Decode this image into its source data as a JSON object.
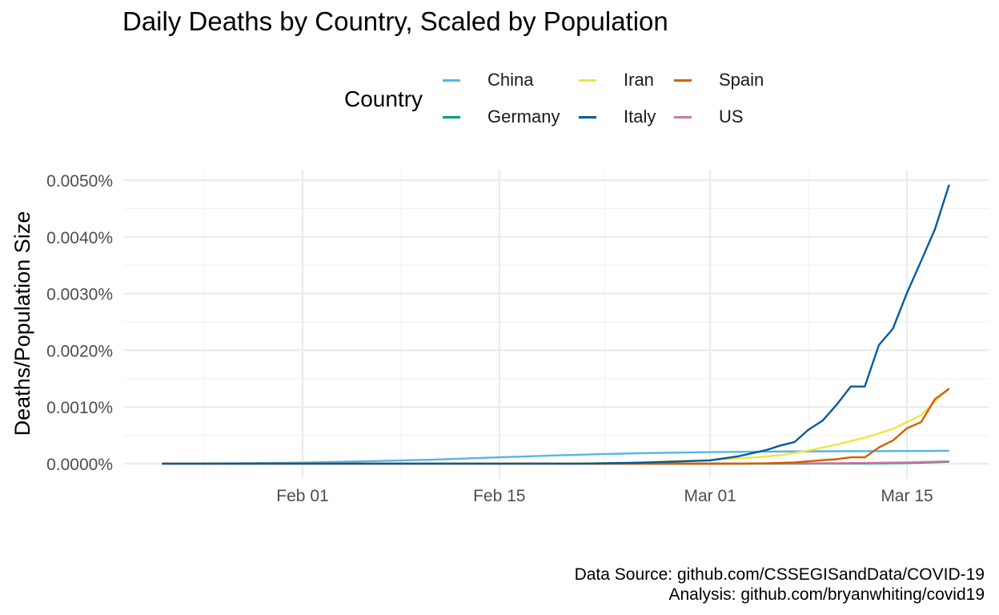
{
  "title": "Daily Deaths by Country, Scaled by Population",
  "legend": {
    "title": "Country",
    "items": [
      {
        "label": "China",
        "color": "#56B4E9"
      },
      {
        "label": "Germany",
        "color": "#009E73"
      },
      {
        "label": "Iran",
        "color": "#F0E442"
      },
      {
        "label": "Italy",
        "color": "#0A5A9C"
      },
      {
        "label": "Spain",
        "color": "#D55E00"
      },
      {
        "label": "US",
        "color": "#CC79A7"
      }
    ]
  },
  "caption": {
    "line1": "Data Source: github.com/CSSEGISandData/COVID-19",
    "line2": "Analysis: github.com/bryanwhiting/covid19"
  },
  "chart_data": {
    "type": "line",
    "title": "Daily Deaths by Country, Scaled by Population",
    "xlabel": "",
    "ylabel": "Deaths/Population Size",
    "x_tick_labels": [
      "Feb 01",
      "Feb 15",
      "Mar 01",
      "Mar 15"
    ],
    "x_ticks": [
      "2020-02-01",
      "2020-02-15",
      "2020-03-01",
      "2020-03-15"
    ],
    "y_tick_labels": [
      "0.0000%",
      "0.0010%",
      "0.0020%",
      "0.0030%",
      "0.0040%",
      "0.0050%"
    ],
    "y_ticks": [
      0,
      0.001,
      0.002,
      0.003,
      0.004,
      0.005
    ],
    "ylim": [
      0,
      0.005
    ],
    "xlim": [
      "2020-01-22",
      "2020-03-18"
    ],
    "grid": true,
    "legend_position": "top",
    "series": [
      {
        "name": "China",
        "color": "#56B4E9",
        "x": [
          "2020-01-22",
          "2020-01-27",
          "2020-02-01",
          "2020-02-05",
          "2020-02-10",
          "2020-02-15",
          "2020-02-20",
          "2020-02-25",
          "2020-03-01",
          "2020-03-05",
          "2020-03-10",
          "2020-03-15",
          "2020-03-18"
        ],
        "y": [
          1.2e-06,
          5.8e-06,
          1.9e-05,
          3.9e-05,
          6.8e-05,
          0.000112,
          0.000153,
          0.000185,
          0.000203,
          0.000213,
          0.000219,
          0.000223,
          0.000226
        ]
      },
      {
        "name": "Germany",
        "color": "#009E73",
        "x": [
          "2020-01-22",
          "2020-03-08",
          "2020-03-12",
          "2020-03-15",
          "2020-03-18"
        ],
        "y": [
          0,
          0,
          2.4e-06,
          9.2e-06,
          3.3e-05
        ]
      },
      {
        "name": "Iran",
        "color": "#F0E442",
        "x": [
          "2020-01-22",
          "2020-02-19",
          "2020-02-24",
          "2020-03-01",
          "2020-03-04",
          "2020-03-06",
          "2020-03-08",
          "2020-03-10",
          "2020-03-12",
          "2020-03-14",
          "2020-03-16",
          "2020-03-18"
        ],
        "y": [
          0,
          0,
          1.4e-05,
          6.5e-05,
          0.000109,
          0.000148,
          0.000231,
          0.000336,
          0.000458,
          0.000613,
          0.000851,
          0.00134
        ]
      },
      {
        "name": "Italy",
        "color": "#0A5A9C",
        "x": [
          "2020-01-22",
          "2020-02-21",
          "2020-02-25",
          "2020-03-01",
          "2020-03-03",
          "2020-03-05",
          "2020-03-06",
          "2020-03-07",
          "2020-03-08",
          "2020-03-09",
          "2020-03-10",
          "2020-03-11",
          "2020-03-12",
          "2020-03-13",
          "2020-03-14",
          "2020-03-15",
          "2020-03-16",
          "2020-03-17",
          "2020-03-18"
        ],
        "y": [
          0,
          1.7e-06,
          1.7e-05,
          5.8e-05,
          0.00013,
          0.00024,
          0.00032,
          0.00038,
          0.0006,
          0.00076,
          0.00104,
          0.00136,
          0.00136,
          0.00209,
          0.00238,
          0.00301,
          0.00357,
          0.00414,
          0.00492
        ]
      },
      {
        "name": "Spain",
        "color": "#D55E00",
        "x": [
          "2020-01-22",
          "2020-03-03",
          "2020-03-05",
          "2020-03-07",
          "2020-03-09",
          "2020-03-10",
          "2020-03-11",
          "2020-03-12",
          "2020-03-13",
          "2020-03-14",
          "2020-03-15",
          "2020-03-16",
          "2020-03-17",
          "2020-03-18"
        ],
        "y": [
          0,
          0,
          6e-06,
          2.1e-05,
          6.2e-05,
          7.7e-05,
          0.000111,
          0.000111,
          0.000286,
          0.000408,
          0.000624,
          0.000731,
          0.00114,
          0.00132
        ]
      },
      {
        "name": "US",
        "color": "#CC79A7",
        "x": [
          "2020-01-22",
          "2020-02-29",
          "2020-03-05",
          "2020-03-10",
          "2020-03-15",
          "2020-03-18"
        ],
        "y": [
          0,
          3e-07,
          3.6e-06,
          8.5e-06,
          2.1e-05,
          4.1e-05
        ]
      }
    ]
  }
}
